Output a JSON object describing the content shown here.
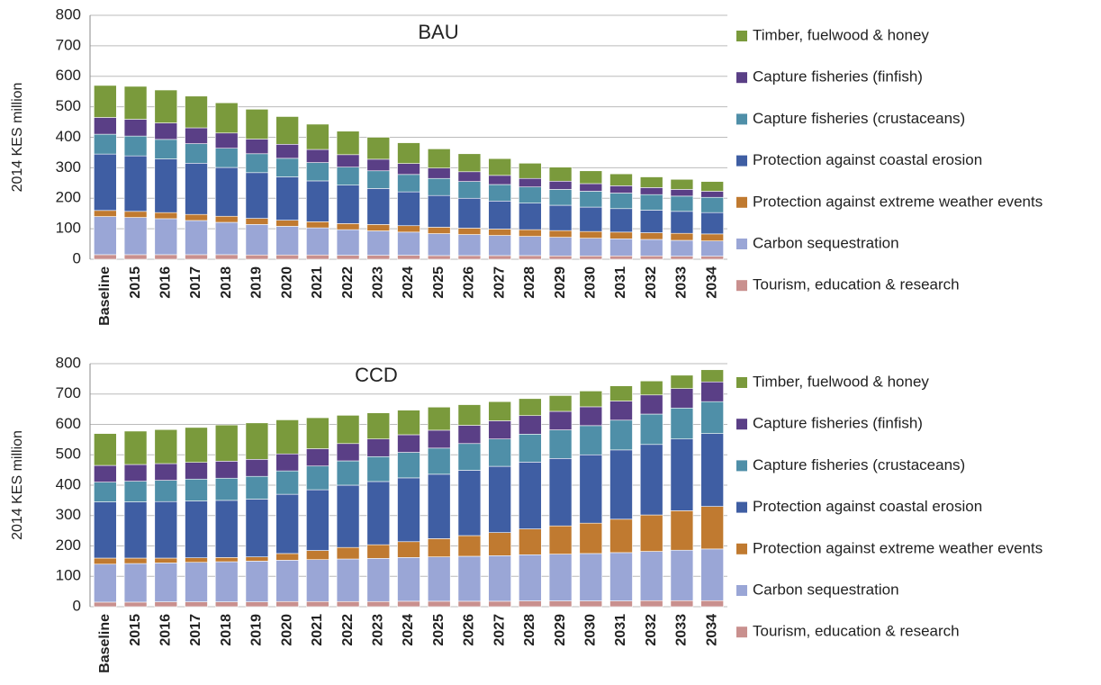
{
  "chart_data": [
    {
      "type": "stacked_bar",
      "title": "BAU",
      "y_label": "2014 KES million",
      "categories": [
        "Baseline",
        "2015",
        "2016",
        "2017",
        "2018",
        "2019",
        "2020",
        "2021",
        "2022",
        "2023",
        "2024",
        "2025",
        "2026",
        "2027",
        "2028",
        "2029",
        "2030",
        "2031",
        "2032",
        "2033",
        "2034"
      ],
      "ylim": [
        0,
        800
      ],
      "yticks": [
        0,
        100,
        200,
        300,
        400,
        500,
        600,
        700,
        800
      ],
      "grid": true,
      "legend": "right",
      "series": [
        {
          "name": "Tourism, education & research",
          "color": "#c9908e",
          "values": [
            15,
            15,
            15,
            15,
            15,
            14,
            14,
            14,
            13,
            13,
            13,
            12,
            12,
            12,
            12,
            11,
            11,
            11,
            11,
            10,
            10
          ]
        },
        {
          "name": "Carbon sequestration",
          "color": "#9aa6d6",
          "values": [
            125,
            122,
            118,
            112,
            106,
            100,
            94,
            89,
            84,
            80,
            76,
            72,
            69,
            66,
            63,
            61,
            58,
            56,
            54,
            52,
            50
          ]
        },
        {
          "name": "Protection against extreme weather events",
          "color": "#c07a30",
          "values": [
            20,
            20,
            20,
            20,
            20,
            20,
            20,
            20,
            20,
            21,
            21,
            21,
            21,
            21,
            22,
            22,
            22,
            22,
            22,
            23,
            23
          ]
        },
        {
          "name": "Protection against coastal erosion",
          "color": "#3f5ea3",
          "values": [
            185,
            182,
            176,
            168,
            160,
            150,
            142,
            134,
            126,
            118,
            111,
            104,
            98,
            92,
            87,
            83,
            80,
            77,
            74,
            72,
            70
          ]
        },
        {
          "name": "Capture fisheries (crustaceans)",
          "color": "#4f8fa8",
          "values": [
            65,
            65,
            64,
            64,
            63,
            62,
            61,
            60,
            59,
            58,
            57,
            56,
            55,
            54,
            53,
            52,
            52,
            51,
            51,
            50,
            50
          ]
        },
        {
          "name": "Capture fisheries (finfish)",
          "color": "#5a3f86",
          "values": [
            55,
            55,
            54,
            52,
            50,
            48,
            46,
            43,
            41,
            38,
            36,
            34,
            32,
            30,
            28,
            27,
            25,
            24,
            23,
            22,
            20
          ]
        },
        {
          "name": "Timber, fuelwood & honey",
          "color": "#7a9a3c",
          "values": [
            105,
            108,
            108,
            104,
            99,
            98,
            91,
            83,
            77,
            72,
            68,
            63,
            59,
            55,
            50,
            46,
            42,
            39,
            35,
            33,
            32
          ]
        }
      ]
    },
    {
      "type": "stacked_bar",
      "title": "CCD",
      "y_label": "2014 KES million",
      "categories": [
        "Baseline",
        "2015",
        "2016",
        "2017",
        "2018",
        "2019",
        "2020",
        "2021",
        "2022",
        "2023",
        "2024",
        "2025",
        "2026",
        "2027",
        "2028",
        "2029",
        "2030",
        "2031",
        "2032",
        "2033",
        "2034"
      ],
      "ylim": [
        0,
        800
      ],
      "yticks": [
        0,
        100,
        200,
        300,
        400,
        500,
        600,
        700,
        800
      ],
      "grid": true,
      "legend": "right",
      "series": [
        {
          "name": "Tourism, education & research",
          "color": "#c9908e",
          "values": [
            15,
            15,
            16,
            16,
            16,
            16,
            17,
            17,
            17,
            17,
            18,
            18,
            18,
            18,
            19,
            19,
            19,
            19,
            20,
            20,
            20
          ]
        },
        {
          "name": "Carbon sequestration",
          "color": "#9aa6d6",
          "values": [
            125,
            127,
            128,
            130,
            132,
            134,
            136,
            138,
            140,
            142,
            144,
            146,
            148,
            150,
            152,
            154,
            156,
            159,
            162,
            166,
            170
          ]
        },
        {
          "name": "Protection against extreme weather events",
          "color": "#c07a30",
          "values": [
            20,
            18,
            16,
            15,
            14,
            14,
            22,
            30,
            38,
            45,
            52,
            60,
            68,
            76,
            85,
            93,
            100,
            110,
            120,
            130,
            140
          ]
        },
        {
          "name": "Protection against coastal erosion",
          "color": "#3f5ea3",
          "values": [
            185,
            185,
            186,
            187,
            188,
            190,
            195,
            200,
            205,
            208,
            210,
            212,
            215,
            218,
            220,
            222,
            225,
            228,
            232,
            236,
            240
          ]
        },
        {
          "name": "Capture fisheries (crustaceans)",
          "color": "#4f8fa8",
          "values": [
            65,
            68,
            70,
            72,
            73,
            75,
            77,
            78,
            80,
            82,
            84,
            86,
            88,
            90,
            92,
            94,
            96,
            98,
            100,
            102,
            105
          ]
        },
        {
          "name": "Capture fisheries (finfish)",
          "color": "#5a3f86",
          "values": [
            55,
            55,
            55,
            55,
            56,
            56,
            56,
            57,
            57,
            58,
            58,
            59,
            60,
            60,
            61,
            61,
            62,
            63,
            63,
            64,
            65
          ]
        },
        {
          "name": "Timber, fuelwood & honey",
          "color": "#7a9a3c",
          "values": [
            105,
            110,
            112,
            115,
            119,
            120,
            112,
            102,
            93,
            86,
            81,
            76,
            68,
            63,
            56,
            52,
            52,
            50,
            46,
            44,
            40
          ]
        }
      ]
    }
  ]
}
